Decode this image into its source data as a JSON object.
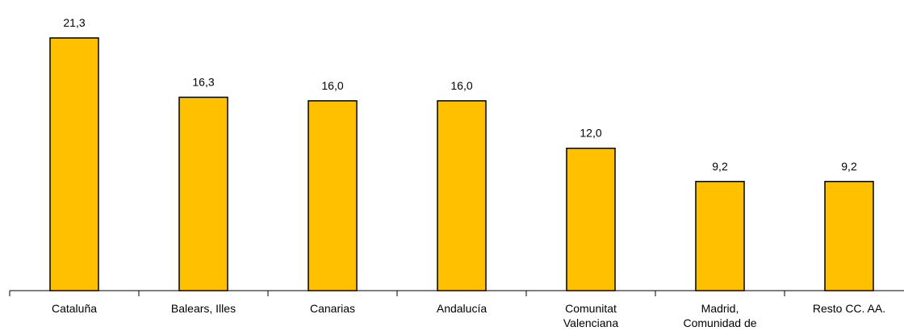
{
  "chart_data": {
    "type": "bar",
    "categories": [
      [
        "Cataluña"
      ],
      [
        "Balears, Illes"
      ],
      [
        "Canarias"
      ],
      [
        "Andalucía"
      ],
      [
        "Comunitat",
        "Valenciana"
      ],
      [
        "Madrid,",
        "Comunidad de"
      ],
      [
        "Resto CC. AA."
      ]
    ],
    "values": [
      21.3,
      16.3,
      16.0,
      16.0,
      12.0,
      9.2,
      9.2
    ],
    "data_labels": [
      "21,3",
      "16,3",
      "16,0",
      "16,0",
      "12,0",
      "9,2",
      "9,2"
    ],
    "bar_color": "#FFC000",
    "title": "",
    "xlabel": "",
    "ylabel": "",
    "ylim": [
      0,
      25
    ],
    "grid": false,
    "legend": "none"
  }
}
